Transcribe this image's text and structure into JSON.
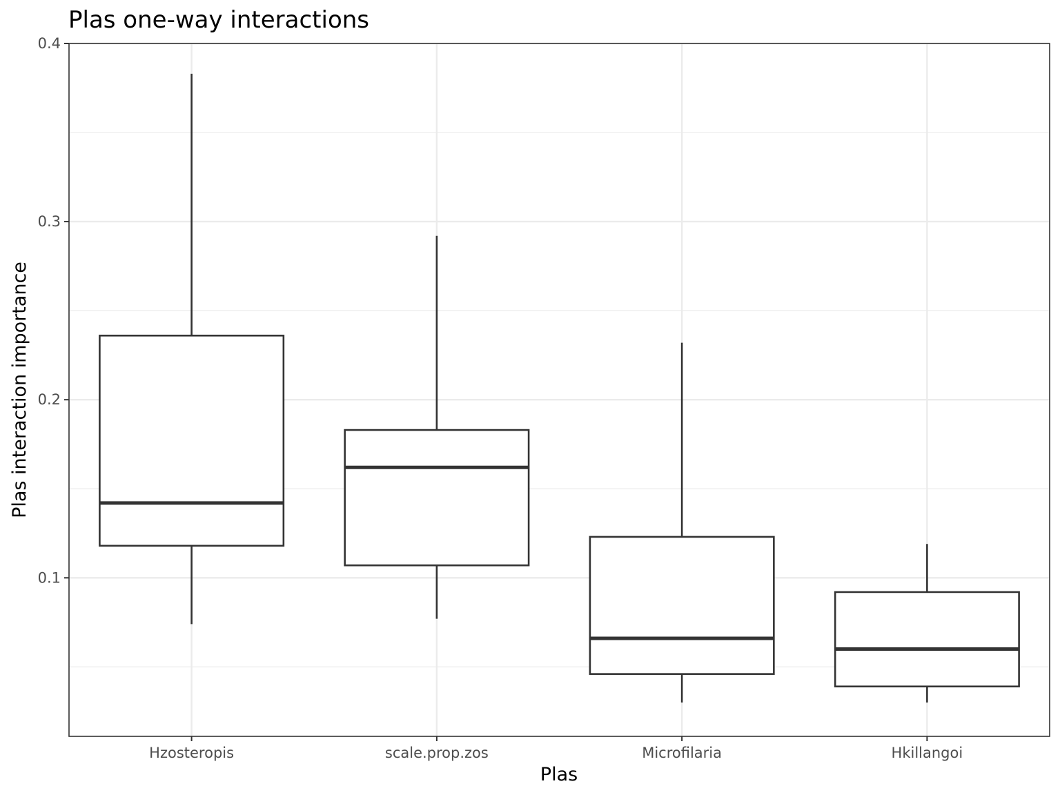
{
  "chart_data": {
    "type": "boxplot",
    "title": "Plas one-way interactions",
    "xlabel": "Plas",
    "ylabel": "Plas interaction importance",
    "categories": [
      "Hzosteropis",
      "scale.prop.zos",
      "Microfilaria",
      "Hkillangoi"
    ],
    "boxes": [
      {
        "category": "Hzosteropis",
        "min": 0.074,
        "q1": 0.118,
        "median": 0.142,
        "q3": 0.236,
        "max": 0.383
      },
      {
        "category": "scale.prop.zos",
        "min": 0.077,
        "q1": 0.107,
        "median": 0.162,
        "q3": 0.183,
        "max": 0.292
      },
      {
        "category": "Microfilaria",
        "min": 0.03,
        "q1": 0.046,
        "median": 0.066,
        "q3": 0.123,
        "max": 0.232
      },
      {
        "category": "Hkillangoi",
        "min": 0.03,
        "q1": 0.039,
        "median": 0.06,
        "q3": 0.092,
        "max": 0.119
      }
    ],
    "ylim": [
      0.011,
      0.4
    ],
    "yticks": [
      0.1,
      0.2,
      0.3,
      0.4
    ],
    "ytick_labels": [
      "0.1",
      "0.2",
      "0.3",
      "0.4"
    ],
    "y_minor_grid": [
      0.05,
      0.15,
      0.25,
      0.35
    ],
    "grid": true,
    "legend": "none"
  }
}
